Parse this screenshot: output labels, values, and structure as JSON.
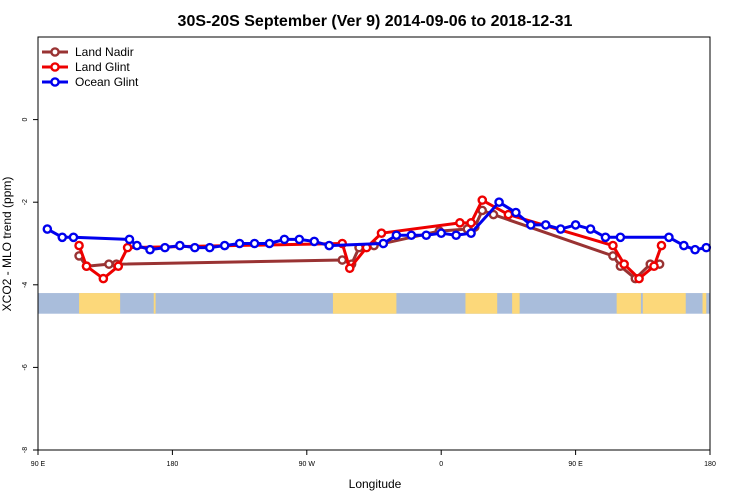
{
  "chart_data": {
    "type": "line",
    "title": "30S-20S September (Ver 9)   2014-09-06 to 2018-12-31",
    "xlabel": "Longitude",
    "ylabel": "XCO2 - MLO trend (ppm)",
    "xlim": [
      90,
      450
    ],
    "ylim": [
      -8,
      2
    ],
    "x_ticks": [
      {
        "value": 90,
        "label": "90 E"
      },
      {
        "value": 162,
        "label": "180"
      },
      {
        "value": 234,
        "label": "90 W"
      },
      {
        "value": 306,
        "label": "0"
      },
      {
        "value": 378,
        "label": "90 E"
      },
      {
        "value": 450,
        "label": "180"
      }
    ],
    "y_ticks": [
      {
        "value": 0,
        "label": "0"
      },
      {
        "value": -2,
        "label": "-2"
      },
      {
        "value": -4,
        "label": "-4"
      },
      {
        "value": -6,
        "label": "-6"
      },
      {
        "value": -8,
        "label": "-8"
      }
    ],
    "legend_position": "top-left",
    "map_strip": {
      "y_range": [
        -4.7,
        -4.2
      ],
      "ocean_color": "#a9bddb",
      "land_color": "#fcd87a",
      "land_segments": [
        [
          112,
          134
        ],
        [
          152,
          153
        ],
        [
          248,
          282
        ],
        [
          319,
          336
        ],
        [
          344,
          348
        ],
        [
          400,
          413
        ],
        [
          414,
          437
        ],
        [
          446,
          448
        ]
      ]
    },
    "series": [
      {
        "name": "Land Nadir",
        "color": "#993333",
        "points": [
          [
            112,
            -3.3
          ],
          [
            116,
            -3.55
          ],
          [
            128,
            -3.5
          ],
          [
            132,
            -3.5
          ],
          [
            253,
            -3.4
          ],
          [
            258,
            -3.5
          ],
          [
            262,
            -3.1
          ],
          [
            270,
            -3.05
          ],
          [
            305,
            -2.7
          ],
          [
            320,
            -2.65
          ],
          [
            324,
            -2.6
          ],
          [
            328,
            -2.2
          ],
          [
            334,
            -2.3
          ],
          [
            398,
            -3.3
          ],
          [
            402,
            -3.55
          ],
          [
            410,
            -3.85
          ],
          [
            418,
            -3.5
          ],
          [
            423,
            -3.5
          ]
        ]
      },
      {
        "name": "Land Glint",
        "color": "#ee0000",
        "points": [
          [
            112,
            -3.05
          ],
          [
            116,
            -3.55
          ],
          [
            125,
            -3.85
          ],
          [
            133,
            -3.55
          ],
          [
            138,
            -3.1
          ],
          [
            253,
            -3.0
          ],
          [
            257,
            -3.6
          ],
          [
            266,
            -3.1
          ],
          [
            274,
            -2.75
          ],
          [
            316,
            -2.5
          ],
          [
            322,
            -2.5
          ],
          [
            328,
            -1.95
          ],
          [
            342,
            -2.3
          ],
          [
            398,
            -3.05
          ],
          [
            404,
            -3.5
          ],
          [
            412,
            -3.85
          ],
          [
            420,
            -3.55
          ],
          [
            424,
            -3.05
          ]
        ]
      },
      {
        "name": "Ocean Glint",
        "color": "#0000ee",
        "points": [
          [
            95,
            -2.65
          ],
          [
            103,
            -2.85
          ],
          [
            109,
            -2.85
          ],
          [
            139,
            -2.9
          ],
          [
            143,
            -3.05
          ],
          [
            150,
            -3.15
          ],
          [
            158,
            -3.1
          ],
          [
            166,
            -3.05
          ],
          [
            174,
            -3.1
          ],
          [
            182,
            -3.1
          ],
          [
            190,
            -3.05
          ],
          [
            198,
            -3.0
          ],
          [
            206,
            -3.0
          ],
          [
            214,
            -3.0
          ],
          [
            222,
            -2.9
          ],
          [
            230,
            -2.9
          ],
          [
            238,
            -2.95
          ],
          [
            246,
            -3.05
          ],
          [
            275,
            -3.0
          ],
          [
            282,
            -2.8
          ],
          [
            290,
            -2.8
          ],
          [
            298,
            -2.8
          ],
          [
            306,
            -2.75
          ],
          [
            314,
            -2.8
          ],
          [
            322,
            -2.75
          ],
          [
            337,
            -2.0
          ],
          [
            346,
            -2.25
          ],
          [
            354,
            -2.55
          ],
          [
            362,
            -2.55
          ],
          [
            370,
            -2.65
          ],
          [
            378,
            -2.55
          ],
          [
            386,
            -2.65
          ],
          [
            394,
            -2.85
          ],
          [
            402,
            -2.85
          ],
          [
            428,
            -2.85
          ],
          [
            436,
            -3.05
          ],
          [
            442,
            -3.15
          ],
          [
            448,
            -3.1
          ]
        ]
      }
    ]
  }
}
